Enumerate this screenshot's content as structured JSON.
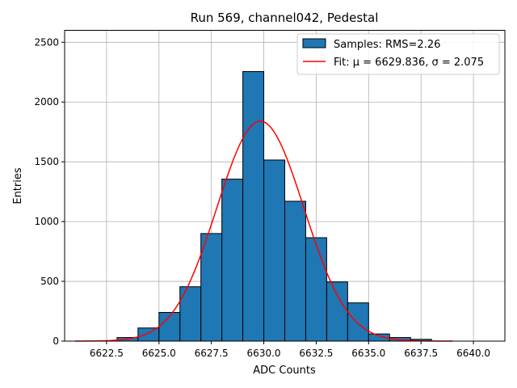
{
  "chart_data": {
    "type": "bar",
    "title": "Run 569, channel042, Pedestal",
    "xlabel": "ADC Counts",
    "ylabel": "Entries",
    "xlim": [
      6620.5,
      6641.5
    ],
    "ylim": [
      0,
      2600
    ],
    "grid": true,
    "legend_position": "top-right",
    "xticks": [
      "6622.5",
      "6625.0",
      "6627.5",
      "6630.0",
      "6632.5",
      "6635.0",
      "6637.5",
      "6640.0"
    ],
    "xtick_values": [
      6622.5,
      6625.0,
      6627.5,
      6630.0,
      6632.5,
      6635.0,
      6637.5,
      6640.0
    ],
    "yticks": [
      "0",
      "500",
      "1000",
      "1500",
      "2000",
      "2500"
    ],
    "ytick_values": [
      0,
      500,
      1000,
      1500,
      2000,
      2500
    ],
    "histogram": {
      "name": "Samples: RMS=2.26",
      "color": "#1f77b4",
      "bin_edges": [
        6622,
        6623,
        6624,
        6625,
        6626,
        6627,
        6628,
        6629,
        6630,
        6631,
        6632,
        6633,
        6634,
        6635,
        6636,
        6637,
        6638
      ],
      "counts": [
        3,
        30,
        110,
        240,
        455,
        900,
        1355,
        2255,
        1515,
        1170,
        865,
        495,
        320,
        60,
        30,
        15
      ]
    },
    "fit": {
      "name": "Fit: μ = 6629.836, σ = 2.075",
      "color": "#ff0000",
      "mu": 6629.836,
      "sigma": 2.075,
      "amplitude": 1840,
      "x_range": [
        6621,
        6639
      ]
    }
  }
}
